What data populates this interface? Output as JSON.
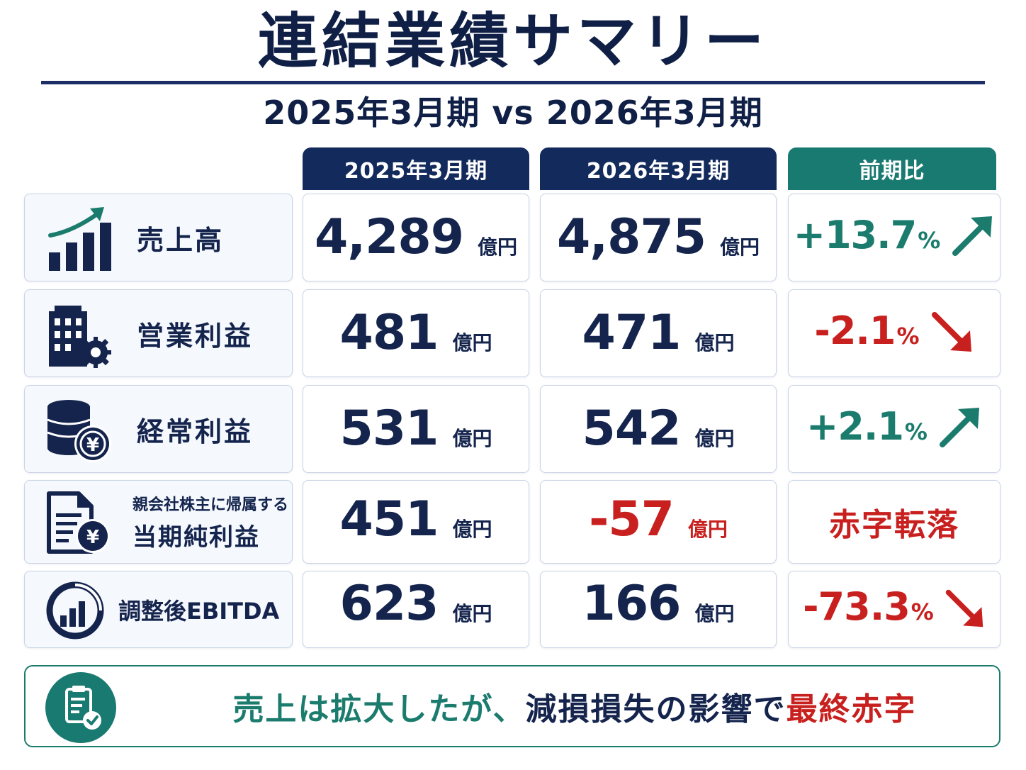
{
  "title": "連結業績サマリー",
  "subtitle": "2025年3月期 vs 2026年3月期",
  "columns": {
    "prev": "2025年3月期",
    "curr": "2026年3月期",
    "change": "前期比"
  },
  "unit": "億円",
  "rows": [
    {
      "icon": "growth-bar-chart-icon",
      "label": "売上高",
      "prev": "4,289",
      "curr": "4,875",
      "change": "+13.7",
      "change_unit": "%",
      "trend": "up"
    },
    {
      "icon": "building-gear-icon",
      "label": "営業利益",
      "prev": "481",
      "curr": "471",
      "change": "-2.1",
      "change_unit": "%",
      "trend": "down"
    },
    {
      "icon": "coin-stack-yen-icon",
      "label": "経常利益",
      "prev": "531",
      "curr": "542",
      "change": "+2.1",
      "change_unit": "%",
      "trend": "up"
    },
    {
      "icon": "document-yen-icon",
      "label_small": "親会社株主に帰属する",
      "label": "当期純利益",
      "prev": "451",
      "curr": "-57",
      "change_text": "赤字転落"
    },
    {
      "icon": "circular-chart-icon",
      "label": "調整後EBITDA",
      "prev": "623",
      "curr": "166",
      "change": "-73.3",
      "change_unit": "%",
      "trend": "down"
    }
  ],
  "summary": {
    "icon": "clipboard-check-icon",
    "part1": "売上は拡大したが、",
    "part2": "減損損失の影響で",
    "part3": "最終赤字"
  },
  "colors": {
    "navy": "#132a5c",
    "teal": "#187a70",
    "red": "#c8201e",
    "text": "#14244d"
  }
}
